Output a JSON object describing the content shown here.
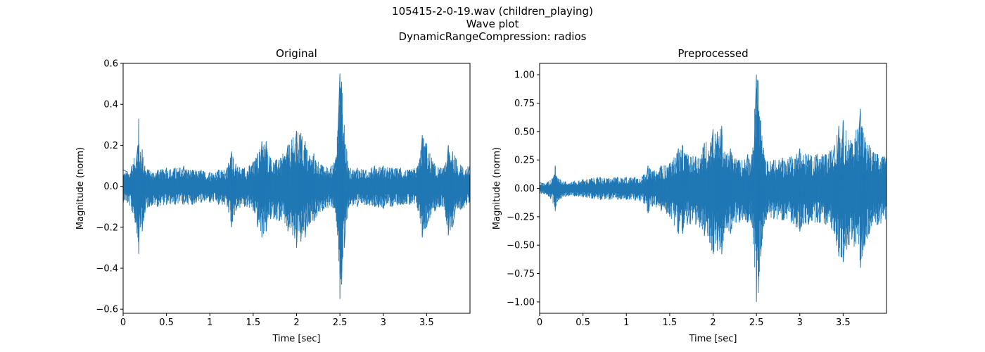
{
  "figure": {
    "title_lines": [
      "105415-2-0-19.wav (children_playing)",
      "Wave plot",
      "DynamicRangeCompression: radios"
    ]
  },
  "colors": {
    "wave": "#1f77b4",
    "axis": "#000000",
    "background": "#ffffff"
  },
  "chart_data": [
    {
      "type": "line",
      "title": "Original",
      "xlabel": "Time [sec]",
      "ylabel": "Magnitude (norm)",
      "xlim": [
        0,
        4.0
      ],
      "ylim": [
        -0.62,
        0.6
      ],
      "xticks": [
        0,
        0.5,
        1,
        1.5,
        2,
        2.5,
        3,
        3.5
      ],
      "xtick_labels": [
        "0",
        "0.5",
        "1",
        "1.5",
        "2",
        "2.5",
        "3",
        "3.5"
      ],
      "yticks": [
        -0.6,
        -0.4,
        -0.2,
        0.0,
        0.2,
        0.4,
        0.6
      ],
      "ytick_labels": [
        "−0.6",
        "−0.4",
        "−0.2",
        "0.0",
        "0.2",
        "0.4",
        "0.6"
      ],
      "series": [
        {
          "x": [
            0,
            0.05,
            0.1,
            0.17,
            0.18,
            0.2,
            0.22,
            0.25,
            0.3,
            0.4,
            0.5,
            0.6,
            0.7,
            0.8,
            0.9,
            1.0,
            1.1,
            1.2,
            1.25,
            1.3,
            1.4,
            1.5,
            1.55,
            1.6,
            1.65,
            1.7,
            1.8,
            1.9,
            2.0,
            2.05,
            2.1,
            2.15,
            2.2,
            2.3,
            2.4,
            2.45,
            2.5,
            2.52,
            2.55,
            2.6,
            2.7,
            2.8,
            2.9,
            3.0,
            3.1,
            3.2,
            3.3,
            3.4,
            3.45,
            3.5,
            3.6,
            3.7,
            3.75,
            3.8,
            3.9,
            4.0
          ],
          "upper": [
            0.08,
            0.07,
            0.1,
            0.2,
            0.33,
            0.15,
            0.18,
            0.1,
            0.08,
            0.08,
            0.09,
            0.09,
            0.1,
            0.08,
            0.08,
            0.07,
            0.08,
            0.09,
            0.17,
            0.11,
            0.09,
            0.12,
            0.16,
            0.22,
            0.22,
            0.14,
            0.13,
            0.2,
            0.27,
            0.26,
            0.22,
            0.15,
            0.16,
            0.1,
            0.1,
            0.13,
            0.55,
            0.51,
            0.3,
            0.09,
            0.09,
            0.08,
            0.1,
            0.1,
            0.09,
            0.09,
            0.08,
            0.1,
            0.25,
            0.21,
            0.1,
            0.09,
            0.2,
            0.17,
            0.1,
            0.1
          ],
          "lower": [
            -0.08,
            -0.08,
            -0.12,
            -0.25,
            -0.33,
            -0.2,
            -0.22,
            -0.13,
            -0.1,
            -0.1,
            -0.09,
            -0.09,
            -0.09,
            -0.09,
            -0.08,
            -0.08,
            -0.09,
            -0.1,
            -0.2,
            -0.12,
            -0.1,
            -0.12,
            -0.2,
            -0.25,
            -0.22,
            -0.16,
            -0.17,
            -0.22,
            -0.3,
            -0.27,
            -0.25,
            -0.18,
            -0.17,
            -0.12,
            -0.1,
            -0.13,
            -0.55,
            -0.48,
            -0.3,
            -0.1,
            -0.1,
            -0.09,
            -0.1,
            -0.11,
            -0.1,
            -0.09,
            -0.09,
            -0.12,
            -0.25,
            -0.2,
            -0.12,
            -0.1,
            -0.24,
            -0.2,
            -0.11,
            -0.1
          ]
        }
      ]
    },
    {
      "type": "line",
      "title": "Preprocessed",
      "xlabel": "Time [sec]",
      "ylabel": "Magnitude (norm)",
      "xlim": [
        0,
        4.0
      ],
      "ylim": [
        -1.1,
        1.1
      ],
      "xticks": [
        0,
        0.5,
        1,
        1.5,
        2,
        2.5,
        3,
        3.5
      ],
      "xtick_labels": [
        "0",
        "0.5",
        "1",
        "1.5",
        "2",
        "2.5",
        "3",
        "3.5"
      ],
      "yticks": [
        -1.0,
        -0.75,
        -0.5,
        -0.25,
        0.0,
        0.25,
        0.5,
        0.75,
        1.0
      ],
      "ytick_labels": [
        "−1.00",
        "−0.75",
        "−0.50",
        "−0.25",
        "0.00",
        "0.25",
        "0.50",
        "0.75",
        "1.00"
      ],
      "series": [
        {
          "x": [
            0,
            0.05,
            0.1,
            0.17,
            0.18,
            0.2,
            0.3,
            0.4,
            0.5,
            0.6,
            0.7,
            0.8,
            0.9,
            1.0,
            1.1,
            1.2,
            1.25,
            1.3,
            1.4,
            1.5,
            1.6,
            1.65,
            1.7,
            1.8,
            1.9,
            2.0,
            2.05,
            2.1,
            2.15,
            2.2,
            2.3,
            2.4,
            2.45,
            2.5,
            2.52,
            2.55,
            2.6,
            2.7,
            2.8,
            2.9,
            3.0,
            3.1,
            3.2,
            3.3,
            3.4,
            3.45,
            3.5,
            3.6,
            3.7,
            3.75,
            3.8,
            3.9,
            4.0
          ],
          "upper": [
            0.05,
            0.04,
            0.06,
            0.12,
            0.2,
            0.1,
            0.06,
            0.06,
            0.08,
            0.09,
            0.1,
            0.09,
            0.1,
            0.1,
            0.1,
            0.12,
            0.2,
            0.15,
            0.2,
            0.22,
            0.35,
            0.38,
            0.3,
            0.28,
            0.4,
            0.52,
            0.5,
            0.55,
            0.3,
            0.35,
            0.25,
            0.3,
            0.3,
            1.0,
            0.95,
            0.6,
            0.25,
            0.25,
            0.27,
            0.28,
            0.35,
            0.3,
            0.3,
            0.3,
            0.38,
            0.55,
            0.6,
            0.4,
            0.7,
            0.45,
            0.38,
            0.3,
            0.28
          ],
          "lower": [
            -0.05,
            -0.05,
            -0.07,
            -0.15,
            -0.2,
            -0.12,
            -0.07,
            -0.07,
            -0.08,
            -0.09,
            -0.1,
            -0.1,
            -0.1,
            -0.1,
            -0.11,
            -0.13,
            -0.22,
            -0.16,
            -0.2,
            -0.25,
            -0.4,
            -0.4,
            -0.32,
            -0.32,
            -0.42,
            -0.58,
            -0.55,
            -0.58,
            -0.35,
            -0.4,
            -0.3,
            -0.3,
            -0.32,
            -1.0,
            -0.92,
            -0.6,
            -0.28,
            -0.27,
            -0.28,
            -0.3,
            -0.38,
            -0.32,
            -0.3,
            -0.32,
            -0.4,
            -0.6,
            -0.65,
            -0.45,
            -0.7,
            -0.5,
            -0.4,
            -0.32,
            -0.3
          ]
        }
      ]
    }
  ]
}
